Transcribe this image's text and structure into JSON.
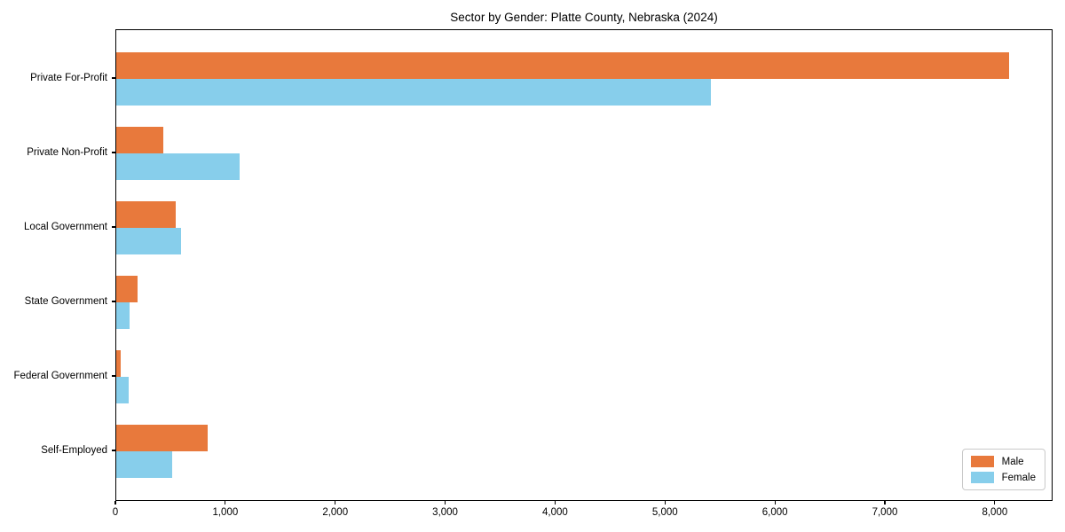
{
  "chart_data": {
    "type": "bar",
    "orientation": "horizontal",
    "title": "Sector by Gender: Platte County, Nebraska (2024)",
    "xlabel": "",
    "ylabel": "",
    "categories": [
      "Private For-Profit",
      "Private Non-Profit",
      "Local Government",
      "State Government",
      "Federal Government",
      "Self-Employed"
    ],
    "series": [
      {
        "name": "Male",
        "color": "#e8793c",
        "values": [
          8120,
          430,
          540,
          190,
          40,
          830
        ]
      },
      {
        "name": "Female",
        "color": "#87ceeb",
        "values": [
          5410,
          1120,
          590,
          120,
          110,
          510
        ]
      }
    ],
    "xlim": [
      0,
      8526
    ],
    "xticks": [
      0,
      1000,
      2000,
      3000,
      4000,
      5000,
      6000,
      7000,
      8000
    ],
    "xtick_labels": [
      "0",
      "1,000",
      "2,000",
      "3,000",
      "4,000",
      "5,000",
      "6,000",
      "7,000",
      "8,000"
    ],
    "grid": false,
    "legend": {
      "position": "lower right",
      "entries": [
        "Male",
        "Female"
      ]
    },
    "axis_color": "#000000"
  }
}
